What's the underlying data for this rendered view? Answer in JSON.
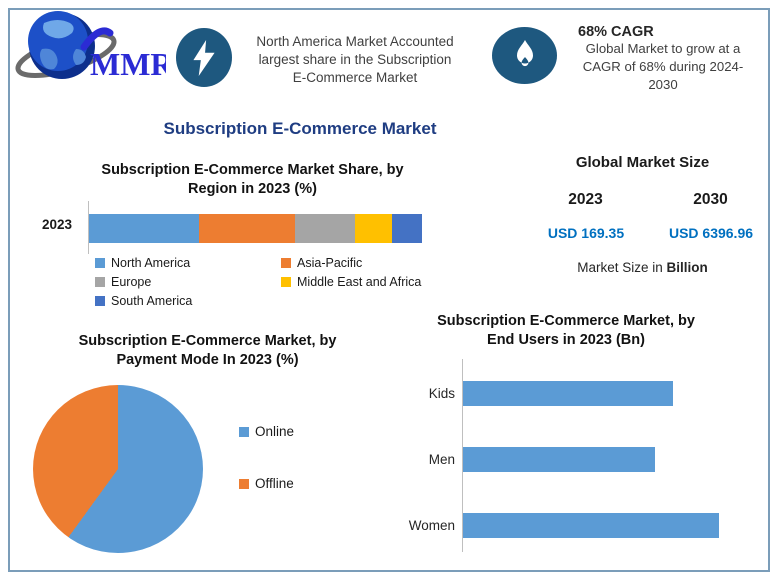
{
  "theme": {
    "frame_border": "#7B9DB9",
    "icon_bg": "#1E587F",
    "title_blue": "#1F3D82",
    "value_blue": "#0070C0",
    "axis_gray": "#BFBFBF"
  },
  "logo": {
    "text": "MMR",
    "color": "#2B2BD4"
  },
  "highlight_banner": {
    "icon": "lightning-icon",
    "lines": [
      "North America Market Accounted",
      "largest share in the Subscription",
      "E-Commerce Market"
    ]
  },
  "cagr_banner": {
    "icon": "flame-icon",
    "title": "68% CAGR",
    "lines": [
      "Global Market to grow at a",
      "CAGR of 68% during 2024-",
      "2030"
    ]
  },
  "page_title": {
    "text": "Subscription E-Commerce Market"
  },
  "market_size_panel": {
    "title": "Global Market Size",
    "year_left": "2023",
    "year_right": "2030",
    "value_left": "USD 169.35",
    "value_right": "USD 6396.96",
    "footnote_prefix": "Market Size in ",
    "footnote_bold": "Billion"
  },
  "chart_data": [
    {
      "id": "region_share",
      "type": "bar",
      "subtype": "stacked-horizontal",
      "title": "Subscription E-Commerce Market Share, by Region in 2023 (%)",
      "title_lines": [
        "Subscription E-Commerce Market Share, by",
        "Region in 2023 (%)"
      ],
      "categories": [
        "2023"
      ],
      "series": [
        {
          "name": "North America",
          "value": 33,
          "color": "#5B9BD5"
        },
        {
          "name": "Asia-Pacific",
          "value": 29,
          "color": "#ED7D31"
        },
        {
          "name": "Europe",
          "value": 18,
          "color": "#A5A5A5"
        },
        {
          "name": "Middle East and Africa",
          "value": 11,
          "color": "#FFC000"
        },
        {
          "name": "South America",
          "value": 9,
          "color": "#4472C4"
        }
      ],
      "values_note": "percent shares estimated from segment widths; no data labels shown",
      "legend_position": "bottom",
      "grid": false
    },
    {
      "id": "payment_mode",
      "type": "pie",
      "title": "Subscription E-Commerce Market, by Payment Mode In 2023 (%)",
      "title_lines": [
        "Subscription E-Commerce Market, by",
        "Payment Mode In 2023 (%)"
      ],
      "slices": [
        {
          "name": "Online",
          "value": 60,
          "color": "#5B9BD5"
        },
        {
          "name": "Offline",
          "value": 40,
          "color": "#ED7D31"
        }
      ],
      "start_angle_deg": 0,
      "values_note": "slice shares estimated from angles; no data labels shown",
      "legend_position": "right",
      "grid": false
    },
    {
      "id": "end_users",
      "type": "bar",
      "subtype": "horizontal",
      "title": "Subscription E-Commerce Market, by End Users in 2023 (Bn)",
      "title_lines": [
        "Subscription E-Commerce Market, by",
        "End Users in 2023 (Bn)"
      ],
      "categories": [
        "Kids",
        "Men",
        "Women"
      ],
      "values": [
        0.82,
        0.75,
        1.0
      ],
      "bar_color": "#5B9BD5",
      "values_note": "relative bar lengths vs longest bar; no axis scale shown",
      "grid": false
    }
  ]
}
